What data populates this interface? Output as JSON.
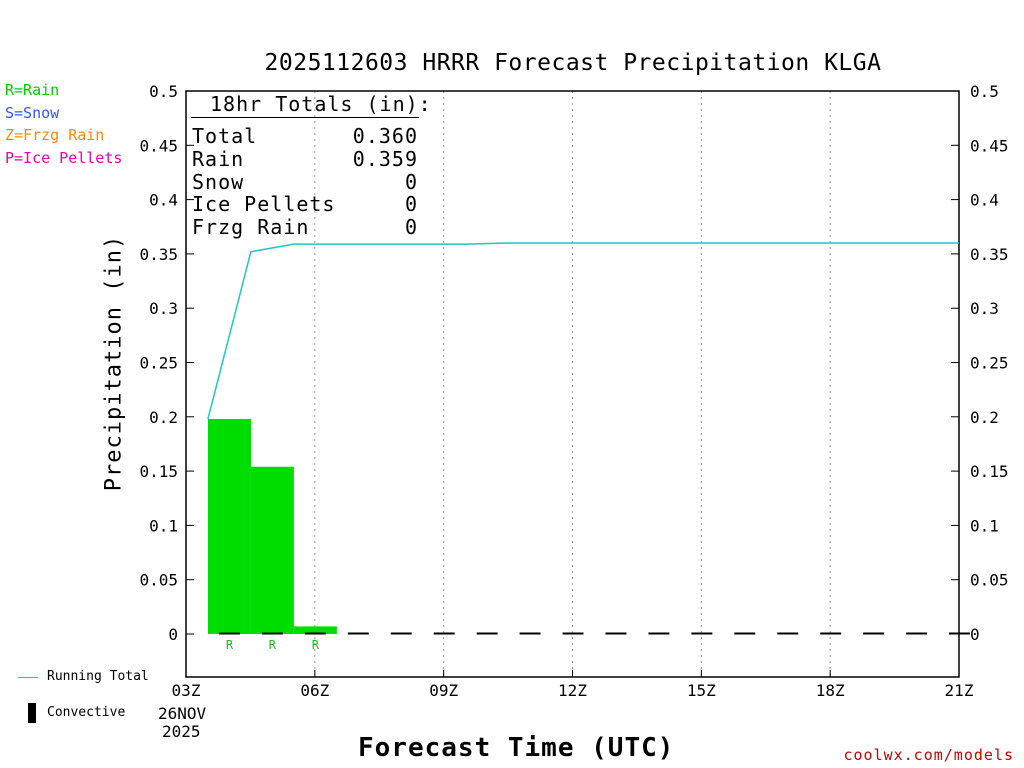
{
  "title": "2025112603 HRRR Forecast Precipitation KLGA",
  "ptype_legend": [
    {
      "text": "R=Rain",
      "color": "#00cc00"
    },
    {
      "text": "S=Snow",
      "color": "#3355ff"
    },
    {
      "text": "Z=Frzg Rain",
      "color": "#ff8800"
    },
    {
      "text": "P=Ice Pellets",
      "color": "#ee00aa"
    }
  ],
  "line_legend": {
    "running_total": "Running Total",
    "convective": "Convective"
  },
  "totals_box": {
    "header": "18hr Totals (in):",
    "rows": [
      {
        "label": "Total",
        "value": "0.360"
      },
      {
        "label": "Rain",
        "value": "0.359"
      },
      {
        "label": "Snow",
        "value": "0"
      },
      {
        "label": "Ice Pellets",
        "value": "0"
      },
      {
        "label": "Frzg Rain",
        "value": "0"
      }
    ]
  },
  "credit": "coolwx.com/models",
  "date_label": {
    "day": "26NOV",
    "year": "2025"
  },
  "colors": {
    "rain_bar": "#00dd00",
    "running_total": "#22c4c4",
    "convective": "#000000"
  },
  "chart_data": {
    "type": "bar",
    "title": "2025112603 HRRR Forecast Precipitation KLGA",
    "xlabel": "Forecast Time (UTC)",
    "ylabel": "Precipitation (in)",
    "ylim": [
      -0.04,
      0.5
    ],
    "xlim": [
      3,
      21
    ],
    "y_ticks": [
      0,
      0.05,
      0.1,
      0.15,
      0.2,
      0.25,
      0.3,
      0.35,
      0.4,
      0.45,
      0.5
    ],
    "y_tick_labels": [
      "0",
      "0.05",
      "0.1",
      "0.15",
      "0.2",
      "0.25",
      "0.3",
      "0.35",
      "0.4",
      "0.45",
      "0.5"
    ],
    "x_ticks": [
      3,
      6,
      9,
      12,
      15,
      18,
      21
    ],
    "x_tick_labels": [
      "03Z",
      "06Z",
      "09Z",
      "12Z",
      "15Z",
      "18Z",
      "21Z"
    ],
    "grid": "vertical dotted",
    "series": [
      {
        "name": "Rain",
        "type": "bar",
        "x": [
          4,
          5,
          6
        ],
        "values": [
          0.198,
          0.154,
          0.007
        ],
        "ptype_labels": [
          "R",
          "R",
          "R"
        ]
      },
      {
        "name": "Running Total",
        "type": "line",
        "x": [
          4,
          5,
          6,
          10,
          11,
          21
        ],
        "values": [
          0.198,
          0.352,
          0.359,
          0.359,
          0.36,
          0.36
        ]
      },
      {
        "name": "Convective",
        "type": "bar",
        "x": [
          4,
          5,
          6,
          7,
          8,
          9,
          10,
          11,
          12,
          13,
          14,
          15,
          16,
          17,
          18,
          19,
          20,
          21
        ],
        "values": [
          0,
          0,
          0,
          0,
          0,
          0,
          0,
          0,
          0,
          0,
          0,
          0,
          0,
          0,
          0,
          0,
          0,
          0
        ]
      }
    ]
  }
}
